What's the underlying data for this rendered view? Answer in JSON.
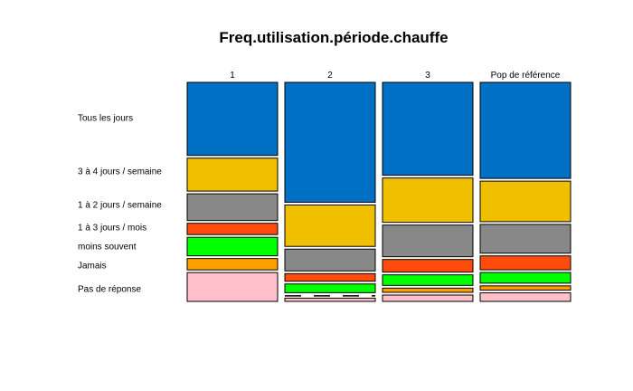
{
  "chart_data": {
    "type": "mosaic",
    "title": "Freq.utilisation.période.chauffe",
    "columns": [
      "1",
      "2",
      "3",
      "Pop de référence"
    ],
    "categories": [
      "Tous les jours",
      "3 à 4 jours / semaine",
      "1 à 2 jours / semaine",
      "1 à 3 jours / mois",
      "moins souvent",
      "Jamais",
      "Pas de réponse"
    ],
    "colors": [
      "#0070C4",
      "#F0C000",
      "#888888",
      "#FF4C0C",
      "#00FF00",
      "#FF9E00",
      "#FFC0CB"
    ],
    "series": [
      {
        "name": "1",
        "values": [
          35.5,
          16.0,
          13.0,
          5.5,
          9.0,
          5.5,
          14.0
        ]
      },
      {
        "name": "2",
        "values": [
          55.0,
          19.0,
          10.0,
          3.5,
          4.0,
          0.0,
          1.5
        ]
      },
      {
        "name": "3",
        "values": [
          44.0,
          21.0,
          15.0,
          6.0,
          5.0,
          2.0,
          3.0
        ]
      },
      {
        "name": "Pop de référence",
        "values": [
          45.0,
          19.0,
          13.5,
          6.5,
          5.0,
          2.0,
          4.0
        ]
      }
    ]
  }
}
